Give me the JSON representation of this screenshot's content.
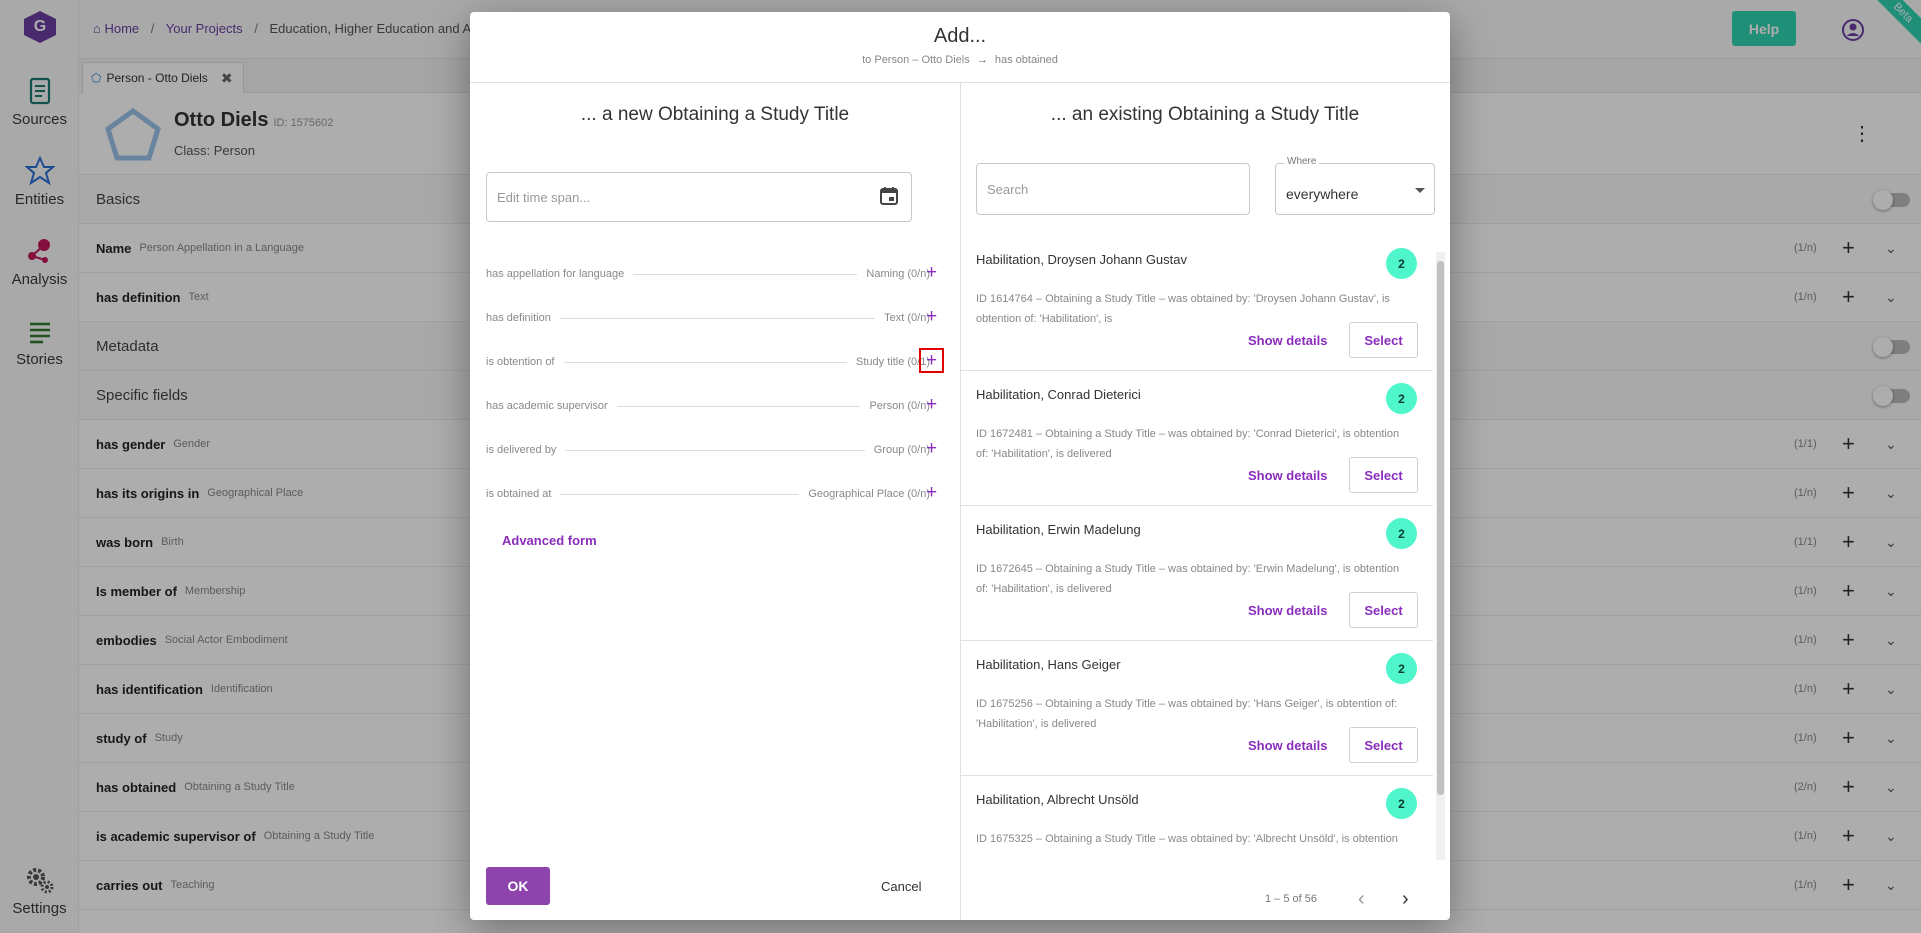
{
  "sidebar": {
    "logo": "G",
    "items": [
      {
        "label": "Sources",
        "icon": "scroll-icon"
      },
      {
        "label": "Entities",
        "icon": "star-icon"
      },
      {
        "label": "Analysis",
        "icon": "analysis-icon"
      },
      {
        "label": "Stories",
        "icon": "lines-icon"
      },
      {
        "label": "Settings",
        "icon": "gears-icon"
      }
    ]
  },
  "topbar": {
    "home": "Home",
    "projects": "Your Projects",
    "current": "Education, Higher Education and Ac",
    "help": "Help",
    "beta": "Beta"
  },
  "tab": {
    "label": "Person - Otto Diels"
  },
  "entity": {
    "name": "Otto Diels",
    "id": "ID: 1575602",
    "class_label": "Class:",
    "class_value": "Person"
  },
  "fields": [
    {
      "label": "Basics",
      "section": true
    },
    {
      "label": "Name",
      "sub": "Person Appellation in a Language",
      "card": "(1/n)"
    },
    {
      "label": "has definition",
      "sub": "Text",
      "card": "(1/n)"
    },
    {
      "label": "Metadata",
      "section": true
    },
    {
      "label": "Specific fields",
      "section": true
    },
    {
      "label": "has gender",
      "sub": "Gender",
      "card": "(1/1)"
    },
    {
      "label": "has its origins in",
      "sub": "Geographical Place",
      "card": "(1/n)"
    },
    {
      "label": "was born",
      "sub": "Birth",
      "card": "(1/1)"
    },
    {
      "label": "Is member of",
      "sub": "Membership",
      "card": "(1/n)"
    },
    {
      "label": "embodies",
      "sub": "Social Actor Embodiment",
      "card": "(1/n)"
    },
    {
      "label": "has identification",
      "sub": "Identification",
      "card": "(1/n)"
    },
    {
      "label": "study of",
      "sub": "Study",
      "card": "(1/n)"
    },
    {
      "label": "has obtained",
      "sub": "Obtaining a Study Title",
      "card": "(2/n)"
    },
    {
      "label": "is academic supervisor of",
      "sub": "Obtaining a Study Title",
      "card": "(1/n)"
    },
    {
      "label": "carries out",
      "sub": "Teaching",
      "card": "(1/n)"
    }
  ],
  "modal": {
    "title": "Add...",
    "sub_from": "to Person – Otto Diels",
    "sub_to": "has obtained",
    "left_heading": "... a new Obtaining a Study Title",
    "right_heading": "... an existing Obtaining a Study Title",
    "timespan_placeholder": "Edit time span...",
    "props": [
      {
        "name": "has appellation for language",
        "target": "Naming (0/n)"
      },
      {
        "name": "has definition",
        "target": "Text (0/n)"
      },
      {
        "name": "is obtention of",
        "target": "Study title (0/1)"
      },
      {
        "name": "has academic supervisor",
        "target": "Person (0/n)"
      },
      {
        "name": "is delivered by",
        "target": "Group (0/n)"
      },
      {
        "name": "is obtained at",
        "target": "Geographical Place (0/n)"
      }
    ],
    "advanced": "Advanced form",
    "ok": "OK",
    "cancel": "Cancel",
    "search_placeholder": "Search",
    "where_label": "Where",
    "where_value": "everywhere",
    "show_details": "Show details",
    "select": "Select",
    "results": [
      {
        "title": "Habilitation, Droysen Johann Gustav",
        "count": "2",
        "desc": "ID 1614764 – Obtaining a Study Title – was obtained by: 'Droysen Johann Gustav', is obtention of: 'Habilitation', is"
      },
      {
        "title": "Habilitation, Conrad Dieterici",
        "count": "2",
        "desc": "ID 1672481 – Obtaining a Study Title – was obtained by: 'Conrad Dieterici', is obtention of: 'Habilitation', is delivered"
      },
      {
        "title": "Habilitation, Erwin Madelung",
        "count": "2",
        "desc": "ID 1672645 – Obtaining a Study Title – was obtained by: 'Erwin Madelung', is obtention of: 'Habilitation', is delivered"
      },
      {
        "title": "Habilitation, Hans Geiger",
        "count": "2",
        "desc": "ID 1675256 – Obtaining a Study Title – was obtained by: 'Hans Geiger', is obtention of: 'Habilitation', is delivered"
      },
      {
        "title": "Habilitation, Albrecht Unsöld",
        "count": "2",
        "desc": "ID 1675325 – Obtaining a Study Title – was obtained by: 'Albrecht Unsöld', is obtention"
      }
    ],
    "pagination": "1 – 5 of 56"
  },
  "colors": {
    "accent": "#8e44ad",
    "teal": "#2fd3b0",
    "badge": "#4ff5cb",
    "highlight": "#e00000"
  }
}
